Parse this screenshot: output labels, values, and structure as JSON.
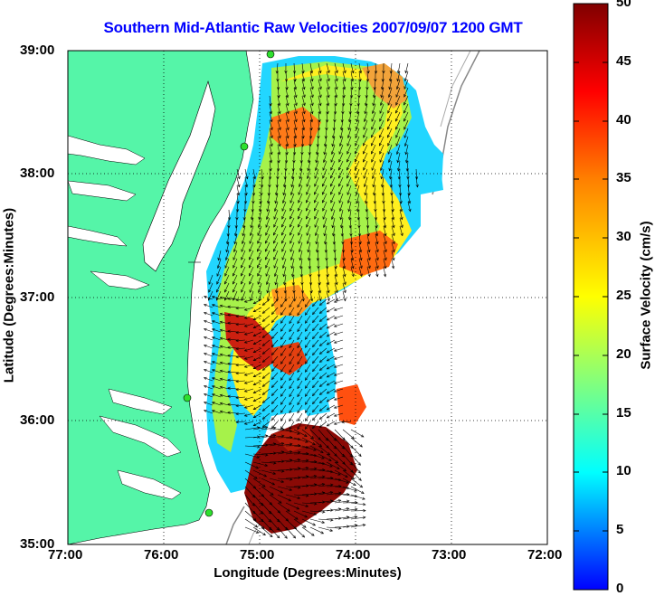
{
  "title": "Southern Mid-Atlantic Raw Velocities 2007/09/07 1200 GMT",
  "xlabel": "Longitude (Degrees:Minutes)",
  "ylabel": "Latitude (Degrees:Minutes)",
  "colorbar": {
    "label": "Surface Velocity (cm/s)",
    "min": 0,
    "max": 50,
    "ticks": [
      "0",
      "5",
      "10",
      "15",
      "20",
      "25",
      "30",
      "35",
      "40",
      "45",
      "50"
    ],
    "colors": [
      "#0000ff",
      "#00ffff",
      "#ffff00",
      "#ff8000",
      "#ff0000",
      "#800000"
    ]
  },
  "x_ticks": [
    "77:00",
    "76:00",
    "75:00",
    "74:00",
    "73:00",
    "72:00"
  ],
  "y_ticks": [
    "39:00",
    "38:00",
    "37:00",
    "36:00",
    "35:00"
  ],
  "land_color": "#55f5a8",
  "title_color": "#0000ff"
}
